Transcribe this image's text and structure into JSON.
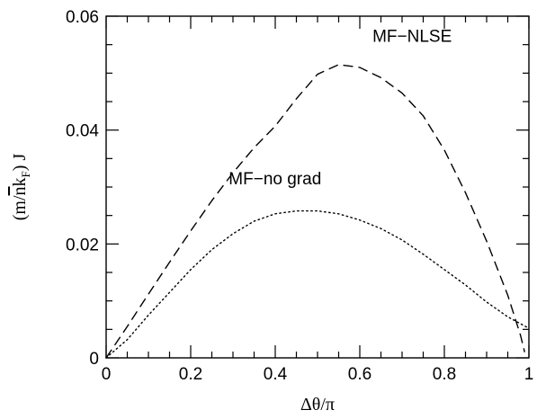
{
  "chart_data": {
    "type": "line",
    "xlabel": "Δθ/π",
    "ylabel_parts": {
      "before": "(m/",
      "nbar": "n",
      "k": "k",
      "sub": "F",
      "after": ") J"
    },
    "xlim": [
      0,
      1
    ],
    "ylim": [
      0,
      0.06
    ],
    "x_ticks": [
      {
        "value": 0,
        "label": "0"
      },
      {
        "value": 0.2,
        "label": "0.2"
      },
      {
        "value": 0.4,
        "label": "0.4"
      },
      {
        "value": 0.6,
        "label": "0.6"
      },
      {
        "value": 0.8,
        "label": "0.8"
      },
      {
        "value": 1,
        "label": "1"
      }
    ],
    "y_ticks": [
      {
        "value": 0,
        "label": "0"
      },
      {
        "value": 0.02,
        "label": "0.02"
      },
      {
        "value": 0.04,
        "label": "0.04"
      },
      {
        "value": 0.06,
        "label": "0.06"
      }
    ],
    "x_minor_step": 0.05,
    "y_minor_step": 0.005,
    "grid": false,
    "series": [
      {
        "name": "MF−NLSE",
        "line_style": "dashed",
        "x": [
          0,
          0.05,
          0.1,
          0.15,
          0.2,
          0.25,
          0.3,
          0.35,
          0.4,
          0.45,
          0.5,
          0.55,
          0.6,
          0.65,
          0.7,
          0.75,
          0.8,
          0.85,
          0.9,
          0.95,
          0.98,
          0.99
        ],
        "y": [
          0,
          0.0055,
          0.0112,
          0.0168,
          0.0223,
          0.0276,
          0.0325,
          0.0369,
          0.0407,
          0.0455,
          0.0498,
          0.0515,
          0.051,
          0.0492,
          0.0465,
          0.0425,
          0.0365,
          0.029,
          0.0205,
          0.011,
          0.004,
          0.001
        ]
      },
      {
        "name": "MF−no grad",
        "line_style": "dotted",
        "x": [
          0,
          0.05,
          0.1,
          0.15,
          0.2,
          0.25,
          0.3,
          0.35,
          0.4,
          0.45,
          0.5,
          0.55,
          0.6,
          0.65,
          0.7,
          0.75,
          0.8,
          0.85,
          0.9,
          0.95,
          1
        ],
        "y": [
          0,
          0.0032,
          0.0075,
          0.0115,
          0.0155,
          0.019,
          0.0218,
          0.024,
          0.0253,
          0.0258,
          0.0258,
          0.0253,
          0.0242,
          0.0227,
          0.0207,
          0.0182,
          0.0155,
          0.0128,
          0.0098,
          0.0072,
          0.0052
        ]
      }
    ],
    "annotations": [
      {
        "text": "MF−NLSE",
        "x": 0.63,
        "y": 0.0555
      },
      {
        "text": "MF−no grad",
        "x": 0.29,
        "y": 0.0305
      }
    ]
  }
}
